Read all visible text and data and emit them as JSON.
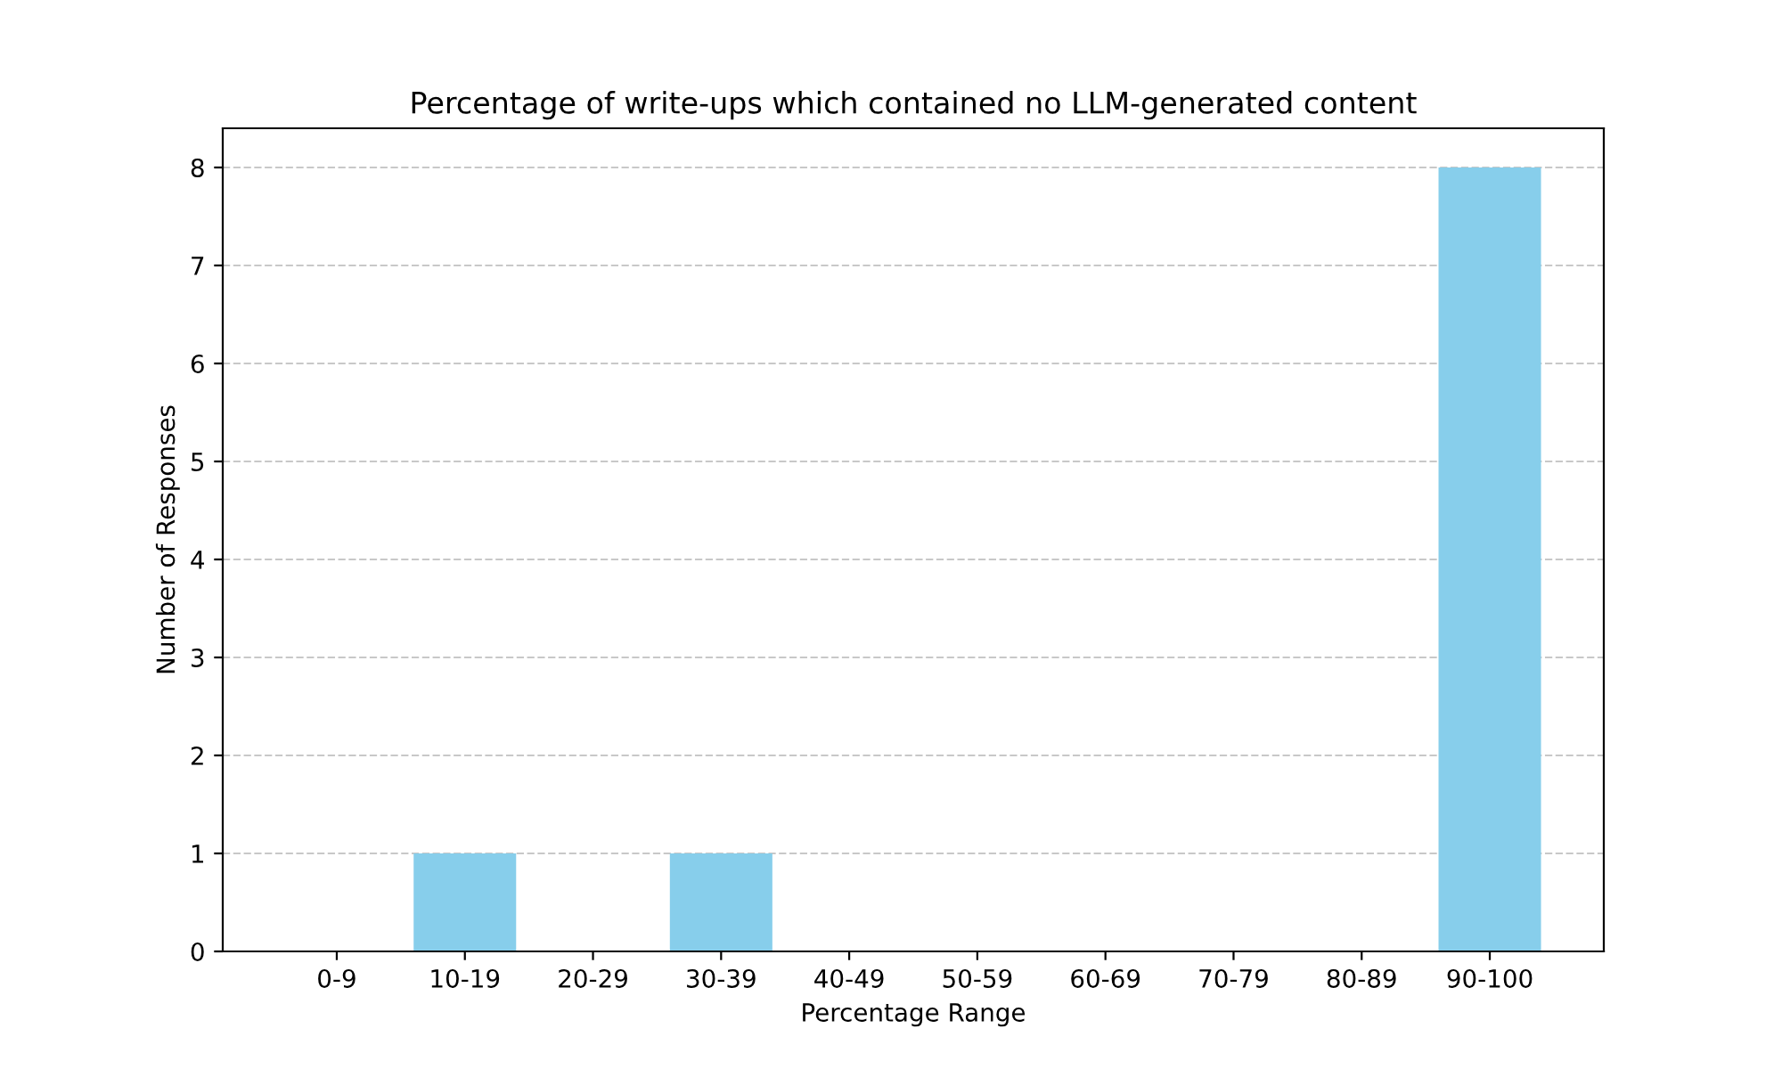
{
  "chart_data": {
    "type": "bar",
    "title": "Percentage of write-ups which contained no LLM-generated content",
    "xlabel": "Percentage Range",
    "ylabel": "Number of Responses",
    "categories": [
      "0-9",
      "10-19",
      "20-29",
      "30-39",
      "40-49",
      "50-59",
      "60-69",
      "70-79",
      "80-89",
      "90-100"
    ],
    "values": [
      0,
      1,
      0,
      1,
      0,
      0,
      0,
      0,
      0,
      8
    ],
    "color": "#87ceeb",
    "ylim": [
      0,
      8.4
    ],
    "yticks": [
      0,
      1,
      2,
      3,
      4,
      5,
      6,
      7,
      8
    ],
    "grid": "y"
  }
}
